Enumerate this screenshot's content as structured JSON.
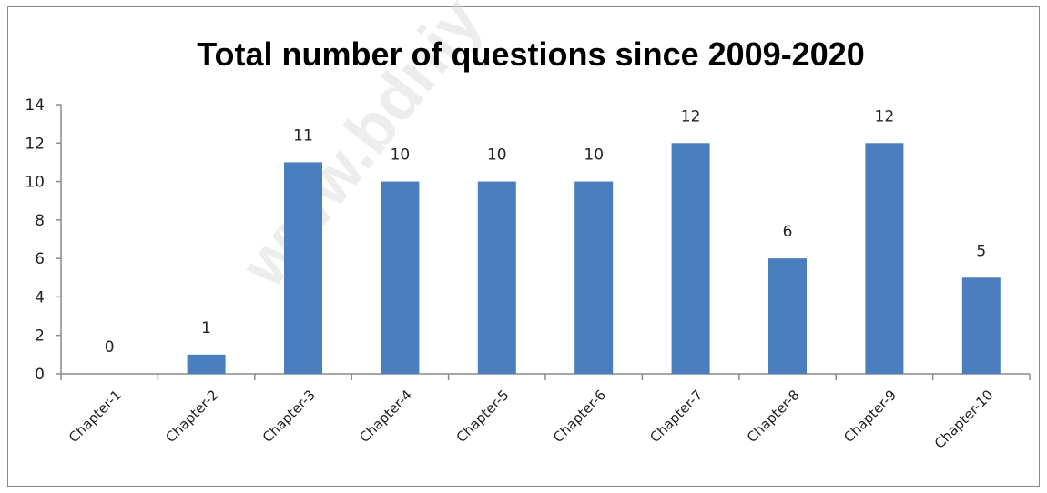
{
  "watermark": "www.bdniy",
  "chart_data": {
    "type": "bar",
    "title": "Total number of questions since 2009-2020",
    "categories": [
      "Chapter-1",
      "Chapter-2",
      "Chapter-3",
      "Chapter-4",
      "Chapter-5",
      "Chapter-6",
      "Chapter-7",
      "Chapter-8",
      "Chapter-9",
      "Chapter-10"
    ],
    "values": [
      0,
      1,
      11,
      10,
      10,
      10,
      12,
      6,
      12,
      5
    ],
    "data_labels": [
      "0",
      "1",
      "11",
      "10",
      "10",
      "10",
      "12",
      "6",
      "12",
      "5"
    ],
    "yticks": [
      "0",
      "2",
      "4",
      "6",
      "8",
      "10",
      "12",
      "14"
    ],
    "ylim": [
      0,
      14
    ],
    "xlabel": "",
    "ylabel": "",
    "grid": false,
    "legend": "none",
    "bar_color": "#4a7ebf"
  }
}
